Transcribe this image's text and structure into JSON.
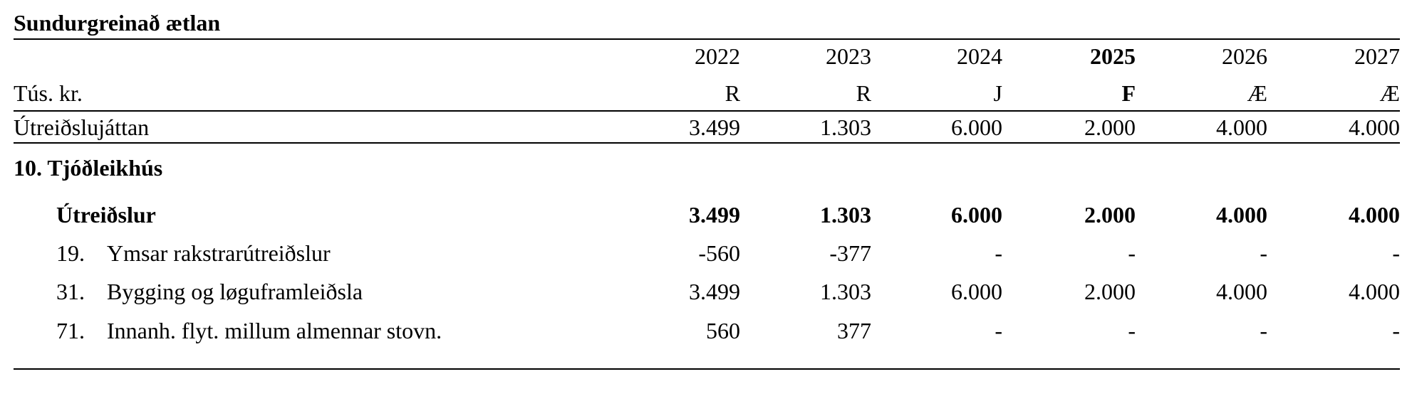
{
  "header": {
    "title": "Sundurgreinað ætlan"
  },
  "table": {
    "years": [
      "2022",
      "2023",
      "2024",
      "2025",
      "2026",
      "2027"
    ],
    "codes": [
      "R",
      "R",
      "J",
      "F",
      "Æ",
      "Æ"
    ],
    "unit": "Tús. kr.",
    "rows": [
      {
        "label": "Útreiðslujáttan",
        "values": [
          "3.499",
          "1.303",
          "6.000",
          "2.000",
          "4.000",
          "4.000"
        ]
      },
      {
        "label": "10. Tjóðleikhús"
      },
      {
        "label": "Útreiðslur",
        "values": [
          "3.499",
          "1.303",
          "6.000",
          "2.000",
          "4.000",
          "4.000"
        ]
      },
      {
        "number": "19.",
        "label": "Ymsar rakstrarútreiðslur",
        "values": [
          "-560",
          "-377",
          "-",
          "-",
          "-",
          "-"
        ]
      },
      {
        "number": "31.",
        "label": "Bygging og løguframleiðsla",
        "values": [
          "3.499",
          "1.303",
          "6.000",
          "2.000",
          "4.000",
          "4.000"
        ]
      },
      {
        "number": "71.",
        "label": "Innanh. flyt. millum almennar stovn.",
        "values": [
          "560",
          "377",
          "-",
          "-",
          "-",
          "-"
        ]
      }
    ]
  }
}
